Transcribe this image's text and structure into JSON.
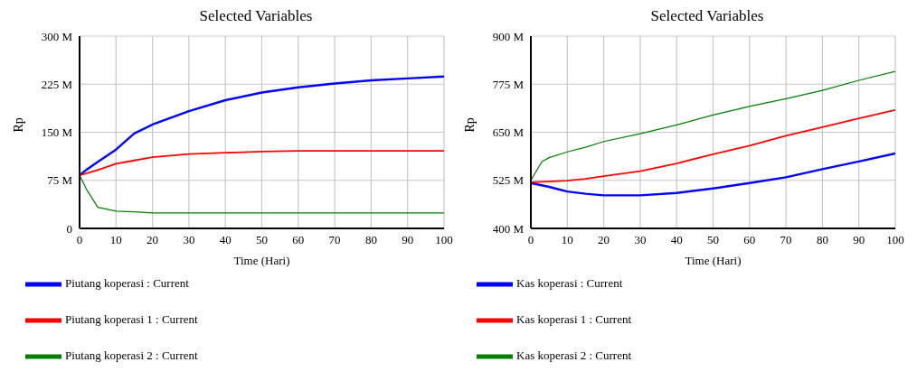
{
  "chart_data": [
    {
      "type": "line",
      "title": "Selected Variables",
      "xlabel": "Time (Hari)",
      "ylabel": "Rp",
      "x": [
        0,
        2,
        5,
        10,
        15,
        20,
        30,
        40,
        50,
        60,
        70,
        80,
        90,
        100
      ],
      "series": [
        {
          "name": "Piutang koperasi : Current",
          "color": "#0000ff",
          "values": [
            83,
            92,
            104,
            123,
            148,
            162,
            183,
            200,
            212,
            220,
            226,
            231,
            234,
            237
          ]
        },
        {
          "name": "Piutang koperasi 1 : Current",
          "color": "#ff0000",
          "values": [
            83,
            86,
            91,
            101,
            106,
            111,
            116,
            118,
            120,
            121,
            121,
            121,
            121,
            121
          ]
        },
        {
          "name": "Piutang koperasi 2 : Current",
          "color": "#008000",
          "values": [
            83,
            60,
            33,
            27,
            26,
            24,
            24,
            24,
            24,
            24,
            24,
            24,
            24,
            24
          ]
        }
      ],
      "xlim": [
        0,
        100
      ],
      "xticks": [
        0,
        10,
        20,
        30,
        40,
        50,
        60,
        70,
        80,
        90,
        100
      ],
      "ylim": [
        0,
        300
      ],
      "yticks": [
        0,
        {
          "value": 75,
          "label": "75 M"
        },
        {
          "value": 150,
          "label": "150 M"
        },
        {
          "value": 225,
          "label": "225 M"
        },
        {
          "value": 300,
          "label": "300 M"
        }
      ],
      "grid": true,
      "legend": "bottom",
      "marker": "none",
      "line_style": "solid"
    },
    {
      "type": "line",
      "title": "Selected Variables",
      "xlabel": "Time (Hari)",
      "ylabel": "Rp",
      "x": [
        0,
        3,
        5,
        10,
        15,
        20,
        30,
        40,
        50,
        60,
        70,
        80,
        90,
        100
      ],
      "series": [
        {
          "name": "Kas koperasi : Current",
          "color": "#0000ff",
          "values": [
            518,
            512,
            508,
            496,
            490,
            486,
            486,
            492,
            504,
            518,
            533,
            554,
            574,
            595
          ]
        },
        {
          "name": "Kas koperasi 1 : Current",
          "color": "#ff0000",
          "values": [
            520,
            521,
            522,
            524,
            529,
            536,
            549,
            569,
            593,
            615,
            641,
            663,
            686,
            708
          ]
        },
        {
          "name": "Kas koperasi 2 : Current",
          "color": "#008000",
          "values": [
            525,
            573,
            584,
            599,
            611,
            626,
            646,
            669,
            695,
            717,
            737,
            759,
            785,
            808
          ]
        }
      ],
      "xlim": [
        0,
        100
      ],
      "xticks": [
        0,
        10,
        20,
        30,
        40,
        50,
        60,
        70,
        80,
        90,
        100
      ],
      "ylim": [
        400,
        900
      ],
      "yticks": [
        {
          "value": 400,
          "label": "400 M"
        },
        {
          "value": 525,
          "label": "525 M"
        },
        {
          "value": 650,
          "label": "650 M"
        },
        {
          "value": 775,
          "label": "775 M"
        },
        {
          "value": 900,
          "label": "900 M"
        }
      ],
      "grid": true,
      "legend": "bottom",
      "marker": "none",
      "line_style": "solid"
    }
  ]
}
